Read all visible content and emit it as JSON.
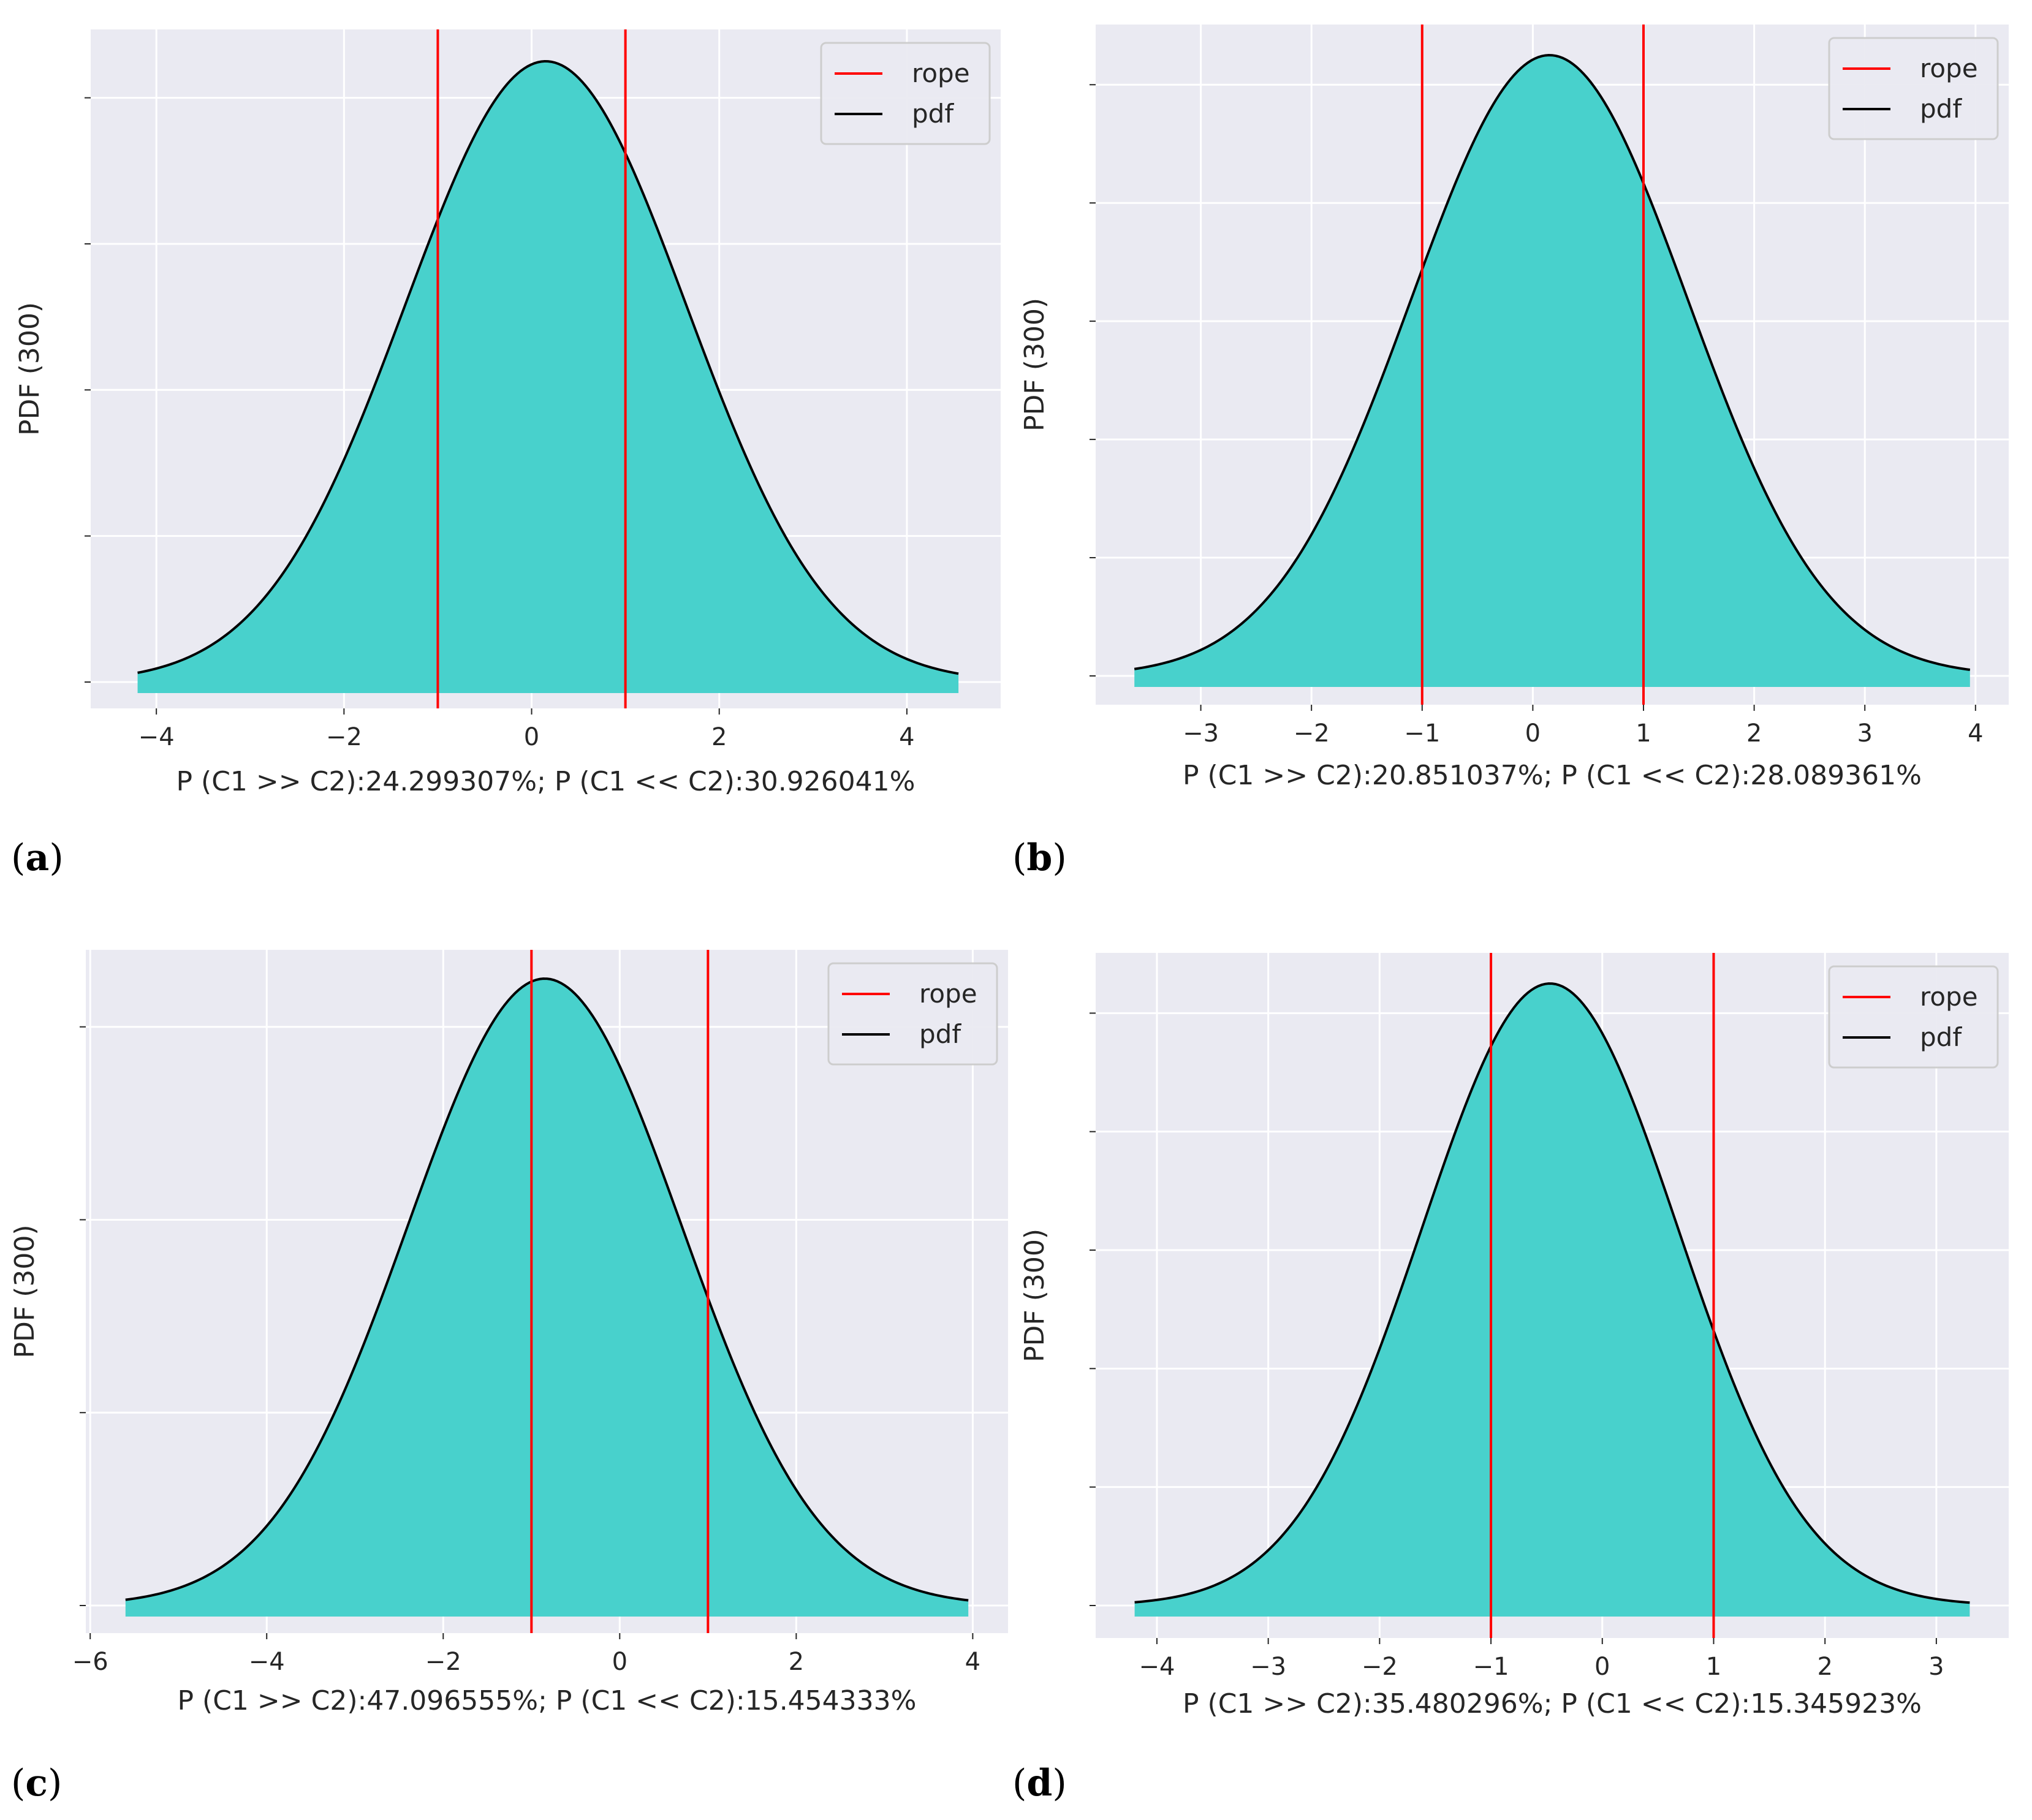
{
  "colors": {
    "fill": "#48d1cc",
    "pdf": "#000000",
    "rope": "#ff0000",
    "background": "#eaeaf2",
    "grid": "#ffffff"
  },
  "chart_data": [
    {
      "id": "a",
      "panel_label": "a",
      "type": "area",
      "ylabel": "PDF (300)",
      "xlabel": "P (C1 >> C2):24.299307%; P (C1 << C2):30.926041%",
      "legend": [
        "rope",
        "pdf"
      ],
      "legend_position": "top-right",
      "rope": [
        -1,
        1
      ],
      "pdf": {
        "distribution": "normal",
        "mean": 0.15,
        "sd": 1.5,
        "x_range": [
          -4.2,
          4.55
        ]
      },
      "xlim": [
        -4.7,
        5.0
      ],
      "xticks": [
        -4,
        -2,
        0,
        2,
        4
      ],
      "xticklabels": [
        "−4",
        "−2",
        "0",
        "2",
        "4"
      ],
      "y_gridlines": 5
    },
    {
      "id": "b",
      "panel_label": "b",
      "type": "area",
      "ylabel": "PDF (300)",
      "xlabel": "P (C1 >> C2):20.851037%; P (C1 << C2):28.089361%",
      "legend": [
        "rope",
        "pdf"
      ],
      "legend_position": "top-right",
      "rope": [
        -1,
        1
      ],
      "pdf": {
        "distribution": "normal",
        "mean": 0.15,
        "sd": 1.25,
        "x_range": [
          -3.6,
          3.95
        ]
      },
      "xlim": [
        -3.95,
        4.3
      ],
      "xticks": [
        -3,
        -2,
        -1,
        0,
        1,
        2,
        3,
        4
      ],
      "xticklabels": [
        "−3",
        "−2",
        "−1",
        "0",
        "1",
        "2",
        "3",
        "4"
      ],
      "y_gridlines": 6
    },
    {
      "id": "c",
      "panel_label": "c",
      "type": "area",
      "ylabel": "PDF (300)",
      "xlabel": "P (C1 >> C2):47.096555%; P (C1 << C2):15.454333%",
      "legend": [
        "rope",
        "pdf"
      ],
      "legend_position": "top-right",
      "rope": [
        -1,
        1
      ],
      "pdf": {
        "distribution": "normal",
        "mean": -0.85,
        "sd": 1.55,
        "x_range": [
          -5.6,
          3.95
        ]
      },
      "xlim": [
        -6.05,
        4.4
      ],
      "xticks": [
        -6,
        -4,
        -2,
        0,
        2,
        4
      ],
      "xticklabels": [
        "−6",
        "−4",
        "−2",
        "0",
        "2",
        "4"
      ],
      "y_gridlines": 4
    },
    {
      "id": "d",
      "panel_label": "d",
      "type": "area",
      "ylabel": "PDF (300)",
      "xlabel": "P (C1 >> C2):35.480296%; P (C1 << C2):15.345923%",
      "legend": [
        "rope",
        "pdf"
      ],
      "legend_position": "top-right",
      "rope": [
        -1,
        1
      ],
      "pdf": {
        "distribution": "normal",
        "mean": -0.47,
        "sd": 1.15,
        "x_range": [
          -4.2,
          3.3
        ]
      },
      "xlim": [
        -4.55,
        3.65
      ],
      "xticks": [
        -4,
        -3,
        -2,
        -1,
        0,
        1,
        2,
        3
      ],
      "xticklabels": [
        "−4",
        "−3",
        "−2",
        "−1",
        "0",
        "1",
        "2",
        "3"
      ],
      "y_gridlines": 6
    }
  ]
}
